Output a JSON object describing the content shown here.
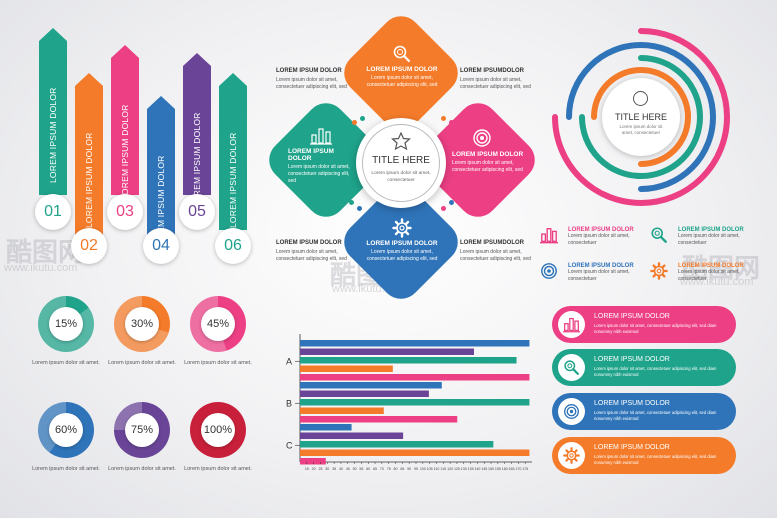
{
  "arrows": [
    {
      "num": "01",
      "label": "LOREM IPSUM DOLOR",
      "color": "#1fa38a"
    },
    {
      "num": "02",
      "label": "LOREM IPSUM DOLOR",
      "color": "#f47b2a"
    },
    {
      "num": "03",
      "label": "LOREM IPSUM DOLOR",
      "color": "#ec3f84"
    },
    {
      "num": "04",
      "label": "LOREM IPSUM DOLOR",
      "color": "#2f74b9"
    },
    {
      "num": "05",
      "label": "LOREM IPSUM DOLOR",
      "color": "#6a4597"
    },
    {
      "num": "06",
      "label": "LOREM IPSUM DOLOR",
      "color": "#1fa38a"
    }
  ],
  "rings": [
    {
      "label": "15%",
      "value": 15,
      "color": "#1fa38a",
      "caption": "Lorem ipsum dolor sit amet."
    },
    {
      "label": "30%",
      "value": 30,
      "color": "#f47b2a",
      "caption": "Lorem ipsum dolor sit amet."
    },
    {
      "label": "45%",
      "value": 45,
      "color": "#ec3f84",
      "caption": "Lorem ipsum dolor sit amet."
    },
    {
      "label": "60%",
      "value": 60,
      "color": "#2f74b9",
      "caption": "Lorem ipsum dolor sit amet."
    },
    {
      "label": "75%",
      "value": 75,
      "color": "#6a4597",
      "caption": "Lorem ipsum dolor sit amet."
    },
    {
      "label": "100%",
      "value": 100,
      "color": "#c8203a",
      "caption": "Lorem ipsum dolor sit amet."
    }
  ],
  "petals": {
    "center_title": "TITLE HERE",
    "center_text": "Lorem ipsum dolor sit amet, consectetuer",
    "top": {
      "title": "LOREM IPSUM DOLOR",
      "text": "Lorem ipsum dolor sit amet, consectetuer adipiscing elit, sed",
      "color": "#f47b2a",
      "icon": "magnifier-icon"
    },
    "left": {
      "title": "LOREM IPSUM DOLOR",
      "text": "Lorem ipsum dolor sit amet, consectetuer adipiscing elit, sed",
      "color": "#1fa38a",
      "icon": "bar-chart-icon"
    },
    "right": {
      "title": "LOREM IPSUM DOLOR",
      "text": "Lorem ipsum dolor sit amet, consectetuer adipiscing elit, sed",
      "color": "#ec3f84",
      "icon": "target-icon"
    },
    "bottom": {
      "title": "LOREM IPSUM DOLOR",
      "text": "Lorem ipsum dolor sit amet, consectetuer adipiscing elit, sed",
      "color": "#2f74b9",
      "icon": "gear-icon"
    },
    "side_texts": [
      {
        "title": "LOREM IPSUM DOLOR",
        "text": "Lorem ipsum dolor sit amet, consectetuer adipiscing elit, sed"
      },
      {
        "title": "LOREM IPSUMDOLOR",
        "text": "Lorem ipsum dolor sit amet, consectetuer adipiscing elit, sed"
      },
      {
        "title": "LOREM IPSUM DOLOR",
        "text": "Lorem ipsum dolor sit amet, consectetuer adipiscing elit, sed"
      },
      {
        "title": "LOREM IPSUMDOLOR",
        "text": "Lorem ipsum dolor sit amet, consectetuer adipiscing elit, sed"
      }
    ]
  },
  "arcs": {
    "title": "TITLE HERE",
    "text": "Lorem ipsum dolor sit amet, consectetuer",
    "colors": [
      "#ec3f84",
      "#2f74b9",
      "#1fa38a",
      "#f47b2a"
    ]
  },
  "legend": [
    {
      "title": "LOREM IPSUM DOLOR",
      "text": "Lorem ipsum dolor sit amet, consectetuer",
      "color": "#ec3f84",
      "icon": "bar-chart-icon"
    },
    {
      "title": "LOREM IPSUM DOLOR",
      "text": "Lorem ipsum dolor sit amet, consectetuer",
      "color": "#1fa38a",
      "icon": "magnifier-icon"
    },
    {
      "title": "LOREM IPSUM DOLOR",
      "text": "Lorem ipsum dolor sit amet, consectetuer",
      "color": "#2f74b9",
      "icon": "target-icon"
    },
    {
      "title": "LOREM IPSUM DOLOR",
      "text": "Lorem ipsum dolor sit amet, consectetuer",
      "color": "#f47b2a",
      "icon": "gear-icon"
    }
  ],
  "pills": [
    {
      "title": "LOREM IPSUM DOLOR",
      "text": "Lorem ipsum dolor sit amet, consectetuer adipiscing elit, sed diam nonummy nibh euismod",
      "color": "#ec3f84",
      "icon": "bar-chart-icon"
    },
    {
      "title": "LOREM IPSUM DOLOR",
      "text": "Lorem ipsum dolor sit amet, consectetuer adipiscing elit, sed diam nonummy nibh euismod",
      "color": "#1fa38a",
      "icon": "magnifier-icon"
    },
    {
      "title": "LOREM IPSUM DOLOR",
      "text": "Lorem ipsum dolor sit amet, consectetuer adipiscing elit, sed diam nonummy nibh euismod",
      "color": "#2f74b9",
      "icon": "target-icon"
    },
    {
      "title": "LOREM IPSUM DOLOR",
      "text": "Lorem ipsum dolor sit amet, consectetuer adipiscing elit, sed diam nonummy nibh euismod",
      "color": "#f47b2a",
      "icon": "gear-icon"
    }
  ],
  "chart_data": {
    "type": "bar",
    "orientation": "horizontal",
    "categories": [
      "A",
      "B",
      "C"
    ],
    "series_colors": [
      "#2f74b9",
      "#6a4597",
      "#1fa38a",
      "#f47b2a",
      "#ec3f84",
      "#1fa38a"
    ],
    "series": [
      {
        "values": [
          178,
          110,
          40
        ]
      },
      {
        "values": [
          135,
          100,
          80
        ]
      },
      {
        "values": [
          168,
          178,
          150
        ]
      },
      {
        "values": [
          72,
          65,
          178
        ]
      },
      {
        "values": [
          178,
          122,
          20
        ]
      }
    ],
    "xticks": [
      15,
      20,
      25,
      30,
      35,
      40,
      45,
      50,
      55,
      60,
      65,
      70,
      75,
      80,
      85,
      90,
      95,
      100,
      105,
      110,
      115,
      120,
      125,
      130,
      135,
      140,
      145,
      150,
      155,
      160,
      165,
      170,
      175
    ],
    "xlim": [
      0,
      180
    ],
    "grid": false
  },
  "watermarks": [
    "酷图网",
    "www.ikutu.com"
  ]
}
